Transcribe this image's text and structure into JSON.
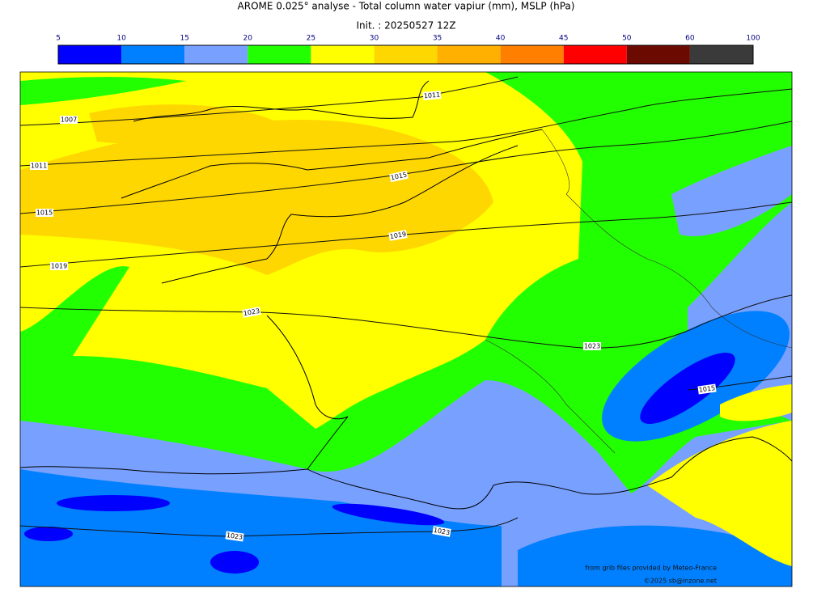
{
  "title": "AROME 0.025° analyse - Total column water vapiur (mm), MSLP (hPa)",
  "init": "Init. : 20250527 12Z",
  "colorbar": {
    "bounds": [
      5,
      10,
      15,
      20,
      25,
      30,
      35,
      40,
      45,
      50,
      60,
      100
    ],
    "colors": [
      "#0000ff",
      "#0080ff",
      "#78a0ff",
      "#22ff00",
      "#ffff00",
      "#ffd700",
      "#ffb000",
      "#ff8000",
      "#ff0000",
      "#6b0a00",
      "#3a3a3a"
    ]
  },
  "isobar_labels": [
    1011,
    1007,
    1011,
    1015,
    1015,
    1019,
    1019,
    1023,
    1023,
    1015,
    1023,
    1023
  ],
  "credits": [
    "from grib files provided by Meteo-France",
    "©2025 sb@inzone.net"
  ]
}
